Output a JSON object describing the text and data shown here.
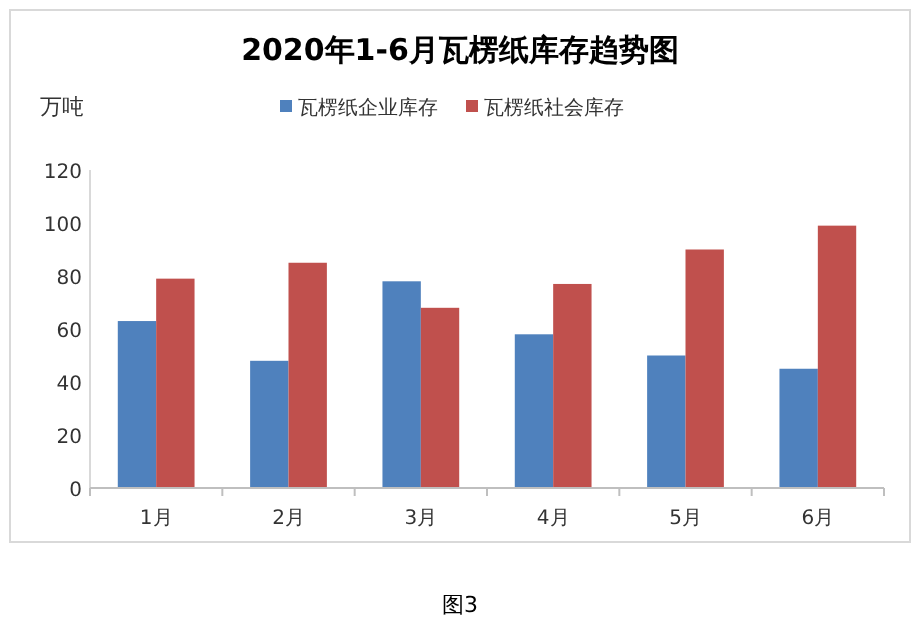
{
  "chart_data": {
    "type": "bar",
    "title": "2020年1-6月瓦楞纸库存趋势图",
    "ylabel": "万吨",
    "categories": [
      "1月",
      "2月",
      "3月",
      "4月",
      "5月",
      "6月"
    ],
    "series": [
      {
        "name": "瓦楞纸企业库存",
        "color": "#4f81bd",
        "values": [
          63,
          48,
          78,
          58,
          50,
          45
        ]
      },
      {
        "name": "瓦楞纸社会库存",
        "color": "#c0504d",
        "values": [
          79,
          85,
          68,
          77,
          90,
          99
        ]
      }
    ],
    "ylim": [
      0,
      120
    ],
    "yticks": [
      0,
      20,
      40,
      60,
      80,
      100,
      120
    ],
    "grid": false,
    "legend": "top",
    "annotations": [
      "图3"
    ]
  }
}
